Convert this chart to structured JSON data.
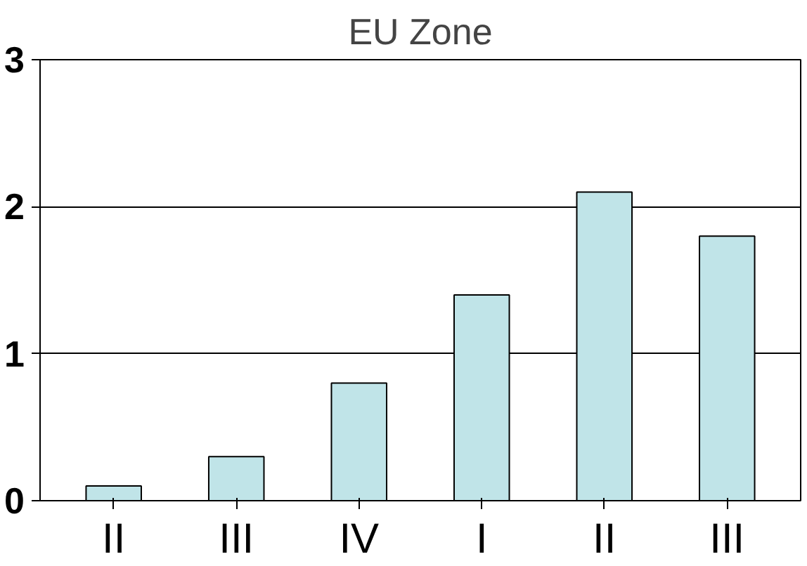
{
  "chart_data": {
    "type": "bar",
    "title": "EU Zone",
    "categories": [
      "II",
      "III",
      "IV",
      "I",
      "II",
      "III"
    ],
    "values": [
      0.1,
      0.3,
      0.8,
      1.4,
      2.1,
      1.8
    ],
    "color": "#c0e4e8",
    "ylim": [
      0,
      3
    ],
    "yticks": [
      0,
      1,
      2,
      3
    ],
    "grid": "y"
  }
}
